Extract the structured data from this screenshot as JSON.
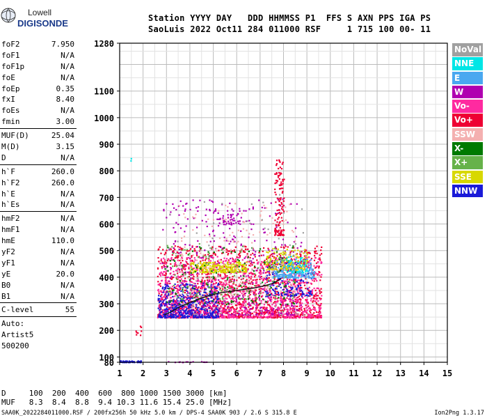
{
  "logo": {
    "line1": "Lowell",
    "line2": "DIGISONDE"
  },
  "header": {
    "line1": "Station YYYY DAY   DDD HHMMSS P1  FFS S AXN PPS IGA PS",
    "line2": "SaoLuis 2022 Oct11 284 011000 RSF     1 715 100 00- 11"
  },
  "params": [
    {
      "name": "foF2",
      "value": "7.950"
    },
    {
      "name": "foF1",
      "value": "N/A"
    },
    {
      "name": "foF1p",
      "value": "N/A"
    },
    {
      "name": "foE",
      "value": "N/A"
    },
    {
      "name": "foEp",
      "value": "0.35"
    },
    {
      "name": "fxI",
      "value": "8.40"
    },
    {
      "name": "foEs",
      "value": "N/A"
    },
    {
      "name": "fmin",
      "value": "3.00"
    },
    {
      "sep": true
    },
    {
      "name": "MUF(D)",
      "value": "25.04"
    },
    {
      "name": "M(D)",
      "value": "3.15"
    },
    {
      "name": "D",
      "value": "N/A"
    },
    {
      "sep": true
    },
    {
      "name": "h`F",
      "value": "260.0"
    },
    {
      "name": "h`F2",
      "value": "260.0"
    },
    {
      "name": "h`E",
      "value": "N/A"
    },
    {
      "name": "h`Es",
      "value": "N/A"
    },
    {
      "sep": true
    },
    {
      "name": "hmF2",
      "value": "N/A"
    },
    {
      "name": "hmF1",
      "value": "N/A"
    },
    {
      "name": "hmE",
      "value": "110.0"
    },
    {
      "name": "yF2",
      "value": "N/A"
    },
    {
      "name": "yF1",
      "value": "N/A"
    },
    {
      "name": "yE",
      "value": "20.0"
    },
    {
      "name": "B0",
      "value": "N/A"
    },
    {
      "name": "B1",
      "value": "N/A"
    },
    {
      "sep": true
    },
    {
      "name": "C-level",
      "value": "55"
    },
    {
      "sep": true
    },
    {
      "text": "Auto:"
    },
    {
      "text": "Artist5"
    },
    {
      "text": "500200"
    }
  ],
  "legend": [
    {
      "label": "NoVal",
      "color": "#a0a0a0"
    },
    {
      "label": "NNE",
      "color": "#00e6e6"
    },
    {
      "label": "E",
      "color": "#4aa8f0"
    },
    {
      "label": "W",
      "color": "#b000b0"
    },
    {
      "label": "Vo-",
      "color": "#ff2aa0"
    },
    {
      "label": "Vo+",
      "color": "#ee0033"
    },
    {
      "label": "SSW",
      "color": "#f4b0b0"
    },
    {
      "label": "X-",
      "color": "#007a00"
    },
    {
      "label": "X+",
      "color": "#66b24a"
    },
    {
      "label": "SSE",
      "color": "#d8d800"
    },
    {
      "label": "NNW",
      "color": "#1a1ad8"
    }
  ],
  "dmuf": {
    "d_line": "D     100  200  400  600  800 1000 1500 3000 [km]",
    "muf_line": "MUF   8.3  8.4  8.8  9.4 10.3 11.6 15.4 25.0 [MHz]"
  },
  "footer": {
    "left": "SAA0K_2022284011000.RSF / 200fx256h 50 kHz 5.0 km / DPS-4 SAA0K 903 / 2.6 S 315.8 E",
    "right": "Ion2Png 1.3.17"
  },
  "chart_data": {
    "type": "scatter",
    "title": "",
    "xlabel": "",
    "ylabel": "",
    "xlim": [
      1,
      15
    ],
    "ylim": [
      80,
      1280
    ],
    "xticks": [
      1,
      2,
      3,
      4,
      5,
      6,
      7,
      8,
      9,
      10,
      11,
      12,
      13,
      14,
      15
    ],
    "yticks": [
      80,
      100,
      200,
      300,
      400,
      500,
      600,
      700,
      800,
      900,
      1000,
      1100,
      1280
    ],
    "grid": true,
    "trace": {
      "x": [
        2.9,
        3.2,
        3.6,
        4.0,
        4.4,
        4.8,
        5.2,
        5.6,
        6.0,
        6.4,
        6.8,
        7.2,
        7.6,
        7.9
      ],
      "y": [
        258,
        270,
        290,
        305,
        318,
        330,
        340,
        345,
        350,
        355,
        360,
        368,
        378,
        395
      ]
    },
    "clusters": [
      {
        "series": "Vo+",
        "x": [
          2.6,
          9.6
        ],
        "y": [
          250,
          520
        ],
        "n": 1500
      },
      {
        "series": "Vo-",
        "x": [
          2.6,
          9.6
        ],
        "y": [
          250,
          480
        ],
        "n": 1100
      },
      {
        "series": "NNW",
        "x": [
          2.6,
          5.2
        ],
        "y": [
          250,
          380
        ],
        "n": 450
      },
      {
        "series": "NNW",
        "x": [
          7.2,
          9.2
        ],
        "y": [
          330,
          470
        ],
        "n": 160
      },
      {
        "series": "W",
        "x": [
          2.8,
          8.8
        ],
        "y": [
          260,
          700
        ],
        "n": 420
      },
      {
        "series": "E",
        "x": [
          7.5,
          9.3
        ],
        "y": [
          400,
          470
        ],
        "n": 200
      },
      {
        "series": "NNE",
        "x": [
          8.0,
          9.0
        ],
        "y": [
          420,
          480
        ],
        "n": 70
      },
      {
        "series": "SSE",
        "x": [
          4.0,
          6.4
        ],
        "y": [
          420,
          460
        ],
        "n": 220
      },
      {
        "series": "SSE",
        "x": [
          7.2,
          9.0
        ],
        "y": [
          430,
          510
        ],
        "n": 120
      },
      {
        "series": "X-",
        "x": [
          2.9,
          8.5
        ],
        "y": [
          300,
          520
        ],
        "n": 150
      },
      {
        "series": "X+",
        "x": [
          3.0,
          8.5
        ],
        "y": [
          320,
          530
        ],
        "n": 110
      },
      {
        "series": "SSW",
        "x": [
          3.5,
          8.5
        ],
        "y": [
          330,
          680
        ],
        "n": 180
      },
      {
        "series": "NoVal",
        "x": [
          3.0,
          9.0
        ],
        "y": [
          260,
          720
        ],
        "n": 90
      },
      {
        "series": "Vo+",
        "x": [
          7.6,
          8.0
        ],
        "y": [
          560,
          850
        ],
        "n": 120
      },
      {
        "series": "W",
        "x": [
          5.0,
          6.2
        ],
        "y": [
          600,
          660
        ],
        "n": 50
      }
    ],
    "isolated": [
      {
        "series": "NNW",
        "x": [
          1.0,
          1.9
        ],
        "y": [
          82,
          88
        ],
        "n": 50
      },
      {
        "series": "W",
        "x": [
          3.0,
          4.8
        ],
        "y": [
          82,
          85
        ],
        "n": 14
      },
      {
        "series": "Vo+",
        "x": [
          1.6,
          1.9
        ],
        "y": [
          180,
          225
        ],
        "n": 8
      },
      {
        "series": "NNE",
        "x": [
          1.4,
          1.6
        ],
        "y": [
          840,
          860
        ],
        "n": 2
      }
    ]
  }
}
